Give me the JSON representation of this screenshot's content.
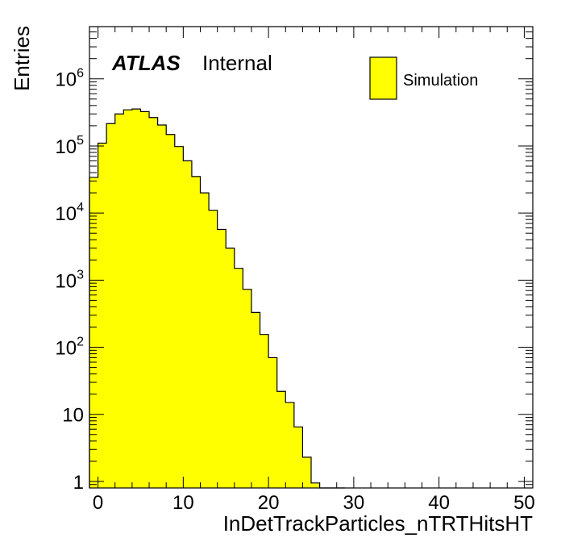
{
  "chart_data": {
    "type": "bar",
    "subtype": "histogram",
    "xlabel": "InDetTrackParticles_nTRTHitsHT",
    "ylabel": "Entries",
    "ylog": true,
    "xlim": [
      -1,
      51
    ],
    "ylim": [
      0.8,
      6000000
    ],
    "bin_width": 1,
    "x_ticks": [
      0,
      10,
      20,
      30,
      40,
      50
    ],
    "x_tick_labels": [
      "0",
      "10",
      "20",
      "30",
      "40",
      "50"
    ],
    "y_ticks": [
      1,
      10,
      100,
      1000,
      10000,
      100000,
      1000000
    ],
    "y_tick_labels": [
      {
        "base": "1",
        "exp": ""
      },
      {
        "base": "10",
        "exp": ""
      },
      {
        "base": "10",
        "exp": "2"
      },
      {
        "base": "10",
        "exp": "3"
      },
      {
        "base": "10",
        "exp": "4"
      },
      {
        "base": "10",
        "exp": "5"
      },
      {
        "base": "10",
        "exp": "6"
      }
    ],
    "fill_color": "#ffff00",
    "line_color": "#000000",
    "series": [
      {
        "name": "Simulation",
        "bin_low_edges": [
          -1,
          0,
          1,
          2,
          3,
          4,
          5,
          6,
          7,
          8,
          9,
          10,
          11,
          12,
          13,
          14,
          15,
          16,
          17,
          18,
          19,
          20,
          21,
          22,
          23,
          24,
          25,
          26,
          27,
          28
        ],
        "values": [
          34000,
          110000,
          215000,
          300000,
          345000,
          355000,
          325000,
          265000,
          205000,
          148000,
          98000,
          60000,
          35000,
          20000,
          11000,
          5700,
          3000,
          1500,
          730,
          330,
          155,
          70,
          22,
          15,
          6.5,
          2.3,
          0.95,
          0.46,
          0.46,
          0.62
        ]
      }
    ],
    "legend": {
      "position": "top-right",
      "entries": [
        "Simulation"
      ]
    },
    "annotations": {
      "atlas": "ATLAS",
      "status": "Internal"
    }
  }
}
